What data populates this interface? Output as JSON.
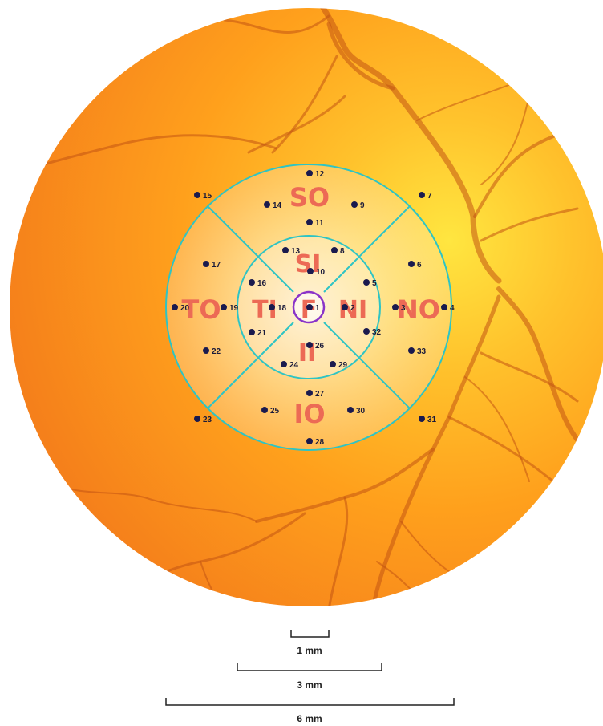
{
  "colors": {
    "fundus_center": "#ffe640",
    "fundus_mid": "#ffa21c",
    "fundus_edge": "#f7851c",
    "vessel": "#c25413",
    "grid_line": "#2ec4c4",
    "region_label": "#ec6a55",
    "foveal_circle": "#8a34c9",
    "point": "#1a1a4e",
    "scale_bar": "#222222"
  },
  "regions": {
    "so": "SO",
    "si": "SI",
    "to": "TO",
    "ti": "TI",
    "f": "F",
    "ni": "NI",
    "no": "NO",
    "ii": "II",
    "io": "IO"
  },
  "scale_bars": {
    "bar_1mm": "1 mm",
    "bar_3mm": "3 mm",
    "bar_6mm": "6 mm"
  },
  "points": {
    "p1": "1",
    "p2": "2",
    "p3": "3",
    "p4": "4",
    "p5": "5",
    "p6": "6",
    "p7": "7",
    "p8": "8",
    "p9": "9",
    "p10": "10",
    "p11": "11",
    "p12": "12",
    "p13": "13",
    "p14": "14",
    "p15": "15",
    "p16": "16",
    "p17": "17",
    "p18": "18",
    "p19": "19",
    "p20": "20",
    "p21": "21",
    "p22": "22",
    "p23": "23",
    "p24": "24",
    "p25": "25",
    "p26": "26",
    "p27": "27",
    "p28": "28",
    "p29": "29",
    "p30": "30",
    "p31": "31",
    "p32": "32",
    "p33": "33"
  }
}
